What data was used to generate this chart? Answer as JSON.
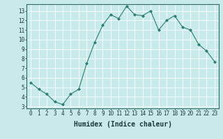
{
  "x": [
    0,
    1,
    2,
    3,
    4,
    5,
    6,
    7,
    8,
    9,
    10,
    11,
    12,
    13,
    14,
    15,
    16,
    17,
    18,
    19,
    20,
    21,
    22,
    23
  ],
  "y": [
    5.5,
    4.8,
    4.3,
    3.5,
    3.2,
    4.3,
    4.8,
    7.5,
    9.7,
    11.5,
    12.6,
    12.2,
    13.5,
    12.6,
    12.5,
    13.0,
    11.0,
    12.0,
    12.5,
    11.3,
    11.0,
    9.5,
    8.8,
    7.7
  ],
  "line_color": "#2e7d6e",
  "marker_color": "#2e7d6e",
  "bg_color": "#c8eaea",
  "grid_color": "#ffffff",
  "xlabel": "Humidex (Indice chaleur)",
  "xlim": [
    -0.5,
    23.5
  ],
  "ylim": [
    2.8,
    13.7
  ],
  "yticks": [
    3,
    4,
    5,
    6,
    7,
    8,
    9,
    10,
    11,
    12,
    13
  ],
  "xticks": [
    0,
    1,
    2,
    3,
    4,
    5,
    6,
    7,
    8,
    9,
    10,
    11,
    12,
    13,
    14,
    15,
    16,
    17,
    18,
    19,
    20,
    21,
    22,
    23
  ],
  "tick_fontsize": 5.5,
  "label_fontsize": 7.0
}
